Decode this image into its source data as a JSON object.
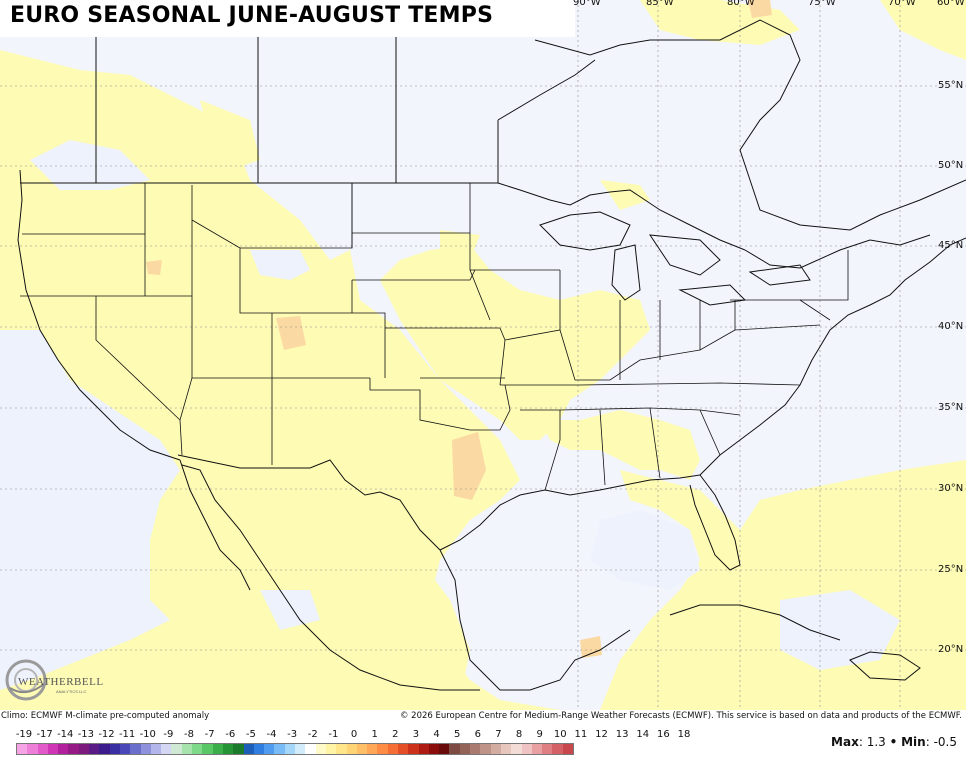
{
  "title": "EURO SEASONAL JUNE-AUGUST TEMPS",
  "longitude_labels": [
    "90°W",
    "85°W",
    "80°W",
    "75°W",
    "70°W",
    "60°W"
  ],
  "latitude_labels": [
    "55°N",
    "50°N",
    "45°N",
    "40°N",
    "35°N",
    "30°N",
    "25°N",
    "20°N"
  ],
  "logo": {
    "text": "WEATHERBELL",
    "sub": "ANALYTICS LLC"
  },
  "footer": {
    "left": "Climo: ECMWF M-climate pre-computed anomaly",
    "right": "© 2026 European Centre for Medium-Range Weather Forecasts (ECMWF). This service is based on data and products of the ECMWF."
  },
  "colorbar": {
    "ticks": [
      "-19",
      "-17",
      "-14",
      "-13",
      "-12",
      "-11",
      "-10",
      "-9",
      "-8",
      "-7",
      "-6",
      "-5",
      "-4",
      "-3",
      "-2",
      "-1",
      "0",
      "1",
      "2",
      "3",
      "4",
      "5",
      "6",
      "7",
      "8",
      "9",
      "10",
      "11",
      "12",
      "13",
      "14",
      "16",
      "18"
    ],
    "colors": [
      "#f5a3e5",
      "#ee7fd9",
      "#e25ac9",
      "#cf35b4",
      "#b3209c",
      "#951a85",
      "#7c1a7e",
      "#5a1b86",
      "#3c1c8c",
      "#3a2ea3",
      "#4a47b8",
      "#6a6fcc",
      "#8e92dc",
      "#b3b6ea",
      "#d4d6f4",
      "#cfe9d4",
      "#a6e3ad",
      "#7fd98a",
      "#5ac766",
      "#3aae48",
      "#259435",
      "#1b7a2b",
      "#1d5fb8",
      "#2f7ee0",
      "#4f9cf0",
      "#79bbf6",
      "#a4d6fa",
      "#d2ecfc",
      "#ffffff",
      "#fffbc8",
      "#fff3a6",
      "#ffe68a",
      "#ffd477",
      "#ffbf66",
      "#ffa756",
      "#ff8c45",
      "#f56e35",
      "#e44f27",
      "#cc321b",
      "#ae1b12",
      "#8a0d0c",
      "#6a0b0b",
      "#7d4a44",
      "#936258",
      "#a97a6f",
      "#bf9388",
      "#d4ada2",
      "#e6c6bd",
      "#f3dcd6",
      "#f0c3c3",
      "#e8a0a2",
      "#e07f83",
      "#d46166",
      "#c8474d"
    ]
  },
  "stats": {
    "max_label": "Max",
    "max_value": "1.3",
    "sep": "•",
    "min_label": "Min",
    "min_value": "-0.5"
  }
}
